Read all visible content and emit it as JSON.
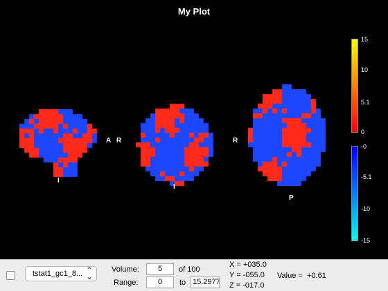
{
  "plot": {
    "title": "My Plot",
    "orientation_labels": {
      "sagittal_right": "A",
      "sagittal_bottom": "I",
      "coronal_left": "R",
      "coronal_bottom": "I",
      "axial_left": "R",
      "axial_bottom": "P"
    }
  },
  "colorbar_positive": {
    "ticks": [
      "15",
      "10",
      "5.1",
      "0"
    ],
    "colors": [
      "#ffff00",
      "#ff0000"
    ]
  },
  "colorbar_negative": {
    "ticks": [
      "-0",
      "-5.1",
      "-10",
      "-15"
    ],
    "colors": [
      "#0000ff",
      "#00ffff"
    ]
  },
  "colors": {
    "positive": "#ff2a1a",
    "negative": "#1d46ff"
  },
  "controls": {
    "file_select_value": "tstat1_gc1_8...",
    "volume_label": "Volume:",
    "volume_value": "5",
    "volume_total": "of 100",
    "range_label": "Range:",
    "range_min": "0",
    "range_to": "to",
    "range_max": "15.2977",
    "coord_x": "X = +035.0",
    "coord_y": "Y = -055.0",
    "coord_z": "Z = -017.0",
    "value_label": "Value =",
    "value": "+0.61"
  }
}
